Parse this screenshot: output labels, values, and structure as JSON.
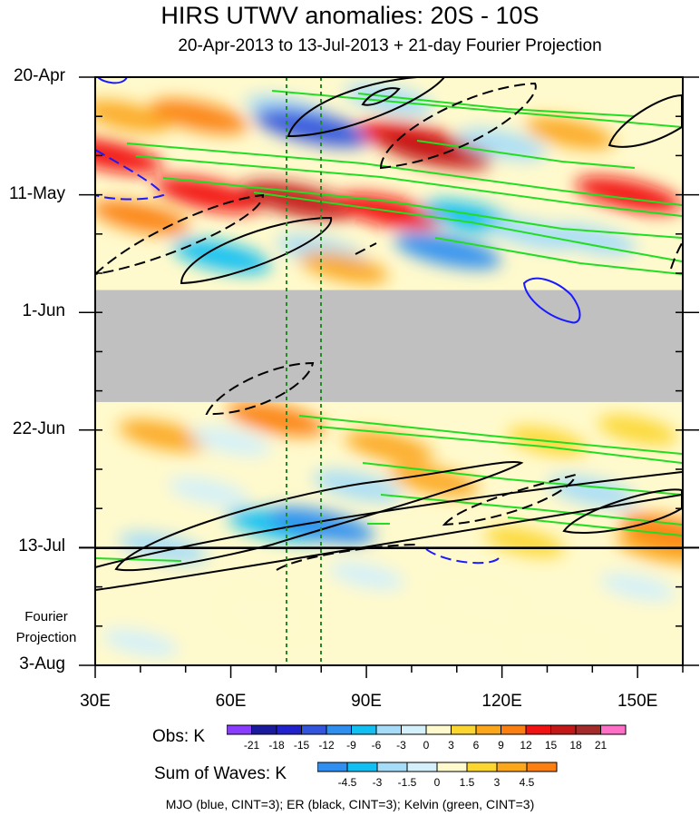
{
  "title": "HIRS UTWV anomalies: 20S - 10S",
  "subtitle": "20-Apr-2013 to 13-Jul-2013 + 21-day Fourier Projection",
  "fourier_label": [
    "Fourier",
    "Projection"
  ],
  "footer": "MJO (blue, CINT=3); ER (black, CINT=3); Kelvin (green, CINT=3)",
  "colors": {
    "missing": "#c0c0c0",
    "mjo": "#1a1aff",
    "er": "#000000",
    "kelvin": "#22dd22",
    "reference_lines": "#228b22"
  },
  "chart_data": {
    "type": "heatmap",
    "title": "HIRS UTWV anomalies: 20S - 10S",
    "subtitle": "20-Apr-2013 to 13-Jul-2013 + 21-day Fourier Projection",
    "x_axis": {
      "range": [
        30,
        160
      ],
      "ticks": [
        30,
        60,
        90,
        120,
        150
      ],
      "tick_labels": [
        "30E",
        "60E",
        "90E",
        "120E",
        "150E"
      ]
    },
    "y_axis": {
      "range": [
        "2013-04-20",
        "2013-08-03"
      ],
      "inverted": true,
      "ticks": [
        "2013-04-20",
        "2013-05-11",
        "2013-06-01",
        "2013-06-22",
        "2013-07-13",
        "2013-08-03"
      ],
      "tick_labels": [
        "20-Apr",
        "11-May",
        "1-Jun",
        "22-Jun",
        "13-Jul",
        "3-Aug"
      ]
    },
    "observation_end": "2013-07-13",
    "missing_data_period": [
      "2013-05-28",
      "2013-06-17"
    ],
    "reference_longitudes": [
      72.5,
      80
    ],
    "obs_colorbar": {
      "label": "Obs: K",
      "levels": [
        "-21",
        "-18",
        "-15",
        "-12",
        "-9",
        "-6",
        "-3",
        "0",
        "3",
        "6",
        "9",
        "12",
        "15",
        "18",
        "21"
      ],
      "colors": [
        "#8b3dff",
        "#1a1a9e",
        "#2222cc",
        "#3355dd",
        "#2e8ff0",
        "#12bff2",
        "#a6dcf8",
        "#d4f0fa",
        "#fffacd",
        "#fcd630",
        "#fca61c",
        "#fc7f12",
        "#f21212",
        "#c41818",
        "#a52a2a",
        "#ff6ec7"
      ]
    },
    "waves_colorbar": {
      "label": "Sum of Waves: K",
      "levels": [
        "-4.5",
        "-3",
        "-1.5",
        "0",
        "1.5",
        "3",
        "4.5"
      ],
      "colors": [
        "#2e8ff0",
        "#12bff2",
        "#a6dcf8",
        "#d4f0fa",
        "#fffacd",
        "#fcd630",
        "#fca61c",
        "#fc7f12"
      ]
    },
    "wave_contours": {
      "mjo": {
        "name": "MJO",
        "cint": 3,
        "color": "blue"
      },
      "er": {
        "name": "ER",
        "cint": 3,
        "color": "black"
      },
      "kelvin": {
        "name": "Kelvin",
        "cint": 3,
        "color": "green"
      }
    },
    "anomaly_blobs": [
      {
        "lon": 37,
        "date": "2013-04-27",
        "value": 6
      },
      {
        "lon": 53,
        "date": "2013-04-27",
        "value": 9
      },
      {
        "lon": 73,
        "date": "2013-04-26",
        "value": -6
      },
      {
        "lon": 95,
        "date": "2013-04-24",
        "value": -6
      },
      {
        "lon": 78,
        "date": "2013-04-29",
        "value": -15
      },
      {
        "lon": 100,
        "date": "2013-05-01",
        "value": 12
      },
      {
        "lon": 105,
        "date": "2013-05-03",
        "value": 15
      },
      {
        "lon": 120,
        "date": "2013-05-02",
        "value": -6
      },
      {
        "lon": 135,
        "date": "2013-04-30",
        "value": 6
      },
      {
        "lon": 33,
        "date": "2013-05-04",
        "value": 12
      },
      {
        "lon": 55,
        "date": "2013-05-11",
        "value": 12
      },
      {
        "lon": 75,
        "date": "2013-05-12",
        "value": 15
      },
      {
        "lon": 95,
        "date": "2013-05-14",
        "value": 12
      },
      {
        "lon": 40,
        "date": "2013-05-15",
        "value": 9
      },
      {
        "lon": 113,
        "date": "2013-05-15",
        "value": -9
      },
      {
        "lon": 127,
        "date": "2013-05-18",
        "value": -6
      },
      {
        "lon": 148,
        "date": "2013-05-11",
        "value": 12
      },
      {
        "lon": 140,
        "date": "2013-05-19",
        "value": -6
      },
      {
        "lon": 58,
        "date": "2013-05-22",
        "value": -9
      },
      {
        "lon": 80,
        "date": "2013-05-21",
        "value": -6
      },
      {
        "lon": 108,
        "date": "2013-05-21",
        "value": -12
      },
      {
        "lon": 85,
        "date": "2013-05-24",
        "value": 6
      },
      {
        "lon": 70,
        "date": "2013-06-20",
        "value": 9
      },
      {
        "lon": 45,
        "date": "2013-06-23",
        "value": 6
      },
      {
        "lon": 60,
        "date": "2013-06-24",
        "value": -3
      },
      {
        "lon": 95,
        "date": "2013-06-25",
        "value": 6
      },
      {
        "lon": 130,
        "date": "2013-06-24",
        "value": 3
      },
      {
        "lon": 150,
        "date": "2013-06-22",
        "value": 3
      },
      {
        "lon": 105,
        "date": "2013-07-01",
        "value": 6
      },
      {
        "lon": 88,
        "date": "2013-07-02",
        "value": -6
      },
      {
        "lon": 140,
        "date": "2013-07-03",
        "value": -6
      },
      {
        "lon": 55,
        "date": "2013-07-03",
        "value": -3
      },
      {
        "lon": 70,
        "date": "2013-07-09",
        "value": -9
      },
      {
        "lon": 80,
        "date": "2013-07-09",
        "value": -12
      },
      {
        "lon": 45,
        "date": "2013-07-13",
        "value": -6
      },
      {
        "lon": 125,
        "date": "2013-07-12",
        "value": 3
      },
      {
        "lon": 155,
        "date": "2013-07-13",
        "value": 6
      },
      {
        "lon": 157,
        "date": "2013-07-10",
        "value": 9
      },
      {
        "lon": 68,
        "date": "2013-07-25",
        "value": 1.5
      },
      {
        "lon": 90,
        "date": "2013-07-18",
        "value": -1.5
      },
      {
        "lon": 115,
        "date": "2013-07-23",
        "value": 1.5
      },
      {
        "lon": 150,
        "date": "2013-07-20",
        "value": -1.5
      },
      {
        "lon": 40,
        "date": "2013-07-30",
        "value": -1.5
      },
      {
        "lon": 132,
        "date": "2013-07-31",
        "value": 1.5
      }
    ]
  }
}
